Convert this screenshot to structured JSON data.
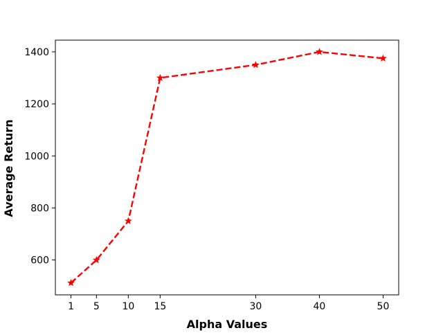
{
  "chart_data": {
    "type": "line",
    "title": "",
    "xlabel": "Alpha Values",
    "ylabel": "Average Return",
    "x": [
      1,
      5,
      10,
      15,
      30,
      40,
      50
    ],
    "xticks": [
      "1",
      "5",
      "10",
      "15",
      "30",
      "40",
      "50"
    ],
    "xlim": [
      -1.45,
      52.45
    ],
    "yticks": [
      "600",
      "800",
      "1000",
      "1200",
      "1400"
    ],
    "ylim": [
      466,
      1445
    ],
    "grid": false,
    "series": [
      {
        "values": [
          512,
          600,
          750,
          1300,
          1350,
          1400,
          1375
        ],
        "color": "#ff0000",
        "line_style": "dashed",
        "marker": "star"
      }
    ]
  }
}
